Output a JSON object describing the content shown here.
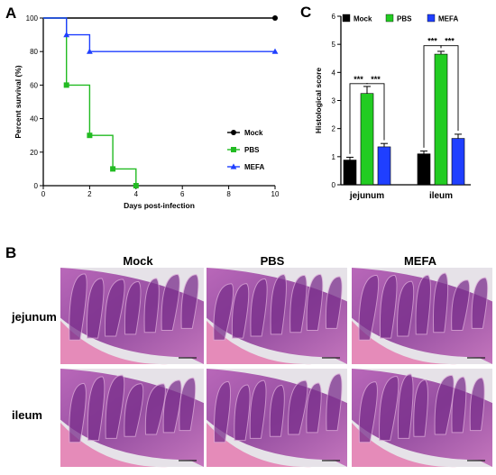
{
  "panels": {
    "a": "A",
    "b": "B",
    "c": "C"
  },
  "chart_data": [
    {
      "type": "line",
      "step": true,
      "xlabel": "Days post-infection",
      "ylabel": "Percent survival (%)",
      "xlim": [
        0,
        10
      ],
      "ylim": [
        0,
        100
      ],
      "xticks": [
        0,
        2,
        4,
        6,
        8,
        10
      ],
      "yticks": [
        0,
        20,
        40,
        60,
        80,
        100
      ],
      "grid": false,
      "legend": "right",
      "series": [
        {
          "name": "Mock",
          "color": "#000000",
          "marker": "circle",
          "x": [
            0,
            10
          ],
          "y": [
            100,
            100
          ],
          "marker_x": [
            10
          ],
          "marker_y": [
            100
          ]
        },
        {
          "name": "PBS",
          "color": "#22bb22",
          "marker": "square",
          "x": [
            0,
            1,
            2,
            3,
            4
          ],
          "y": [
            100,
            60,
            30,
            10,
            0
          ],
          "marker_x": [
            1,
            2,
            3,
            4
          ],
          "marker_y": [
            60,
            30,
            10,
            0
          ]
        },
        {
          "name": "MEFA",
          "color": "#1f3fff",
          "marker": "triangle",
          "x": [
            0,
            1,
            2,
            10
          ],
          "y": [
            100,
            90,
            80,
            80
          ],
          "marker_x": [
            1,
            2,
            10
          ],
          "marker_y": [
            90,
            80,
            80
          ]
        }
      ]
    },
    {
      "type": "bar",
      "ylabel": "Histological score",
      "ylim": [
        0,
        6
      ],
      "yticks": [
        0,
        1,
        2,
        3,
        4,
        5,
        6
      ],
      "categories": [
        "jejunum",
        "ileum"
      ],
      "legend": "top",
      "series": [
        {
          "name": "Mock",
          "color": "#000000",
          "values": [
            0.88,
            1.1
          ],
          "errors": [
            0.1,
            0.1
          ]
        },
        {
          "name": "PBS",
          "color": "#22cc22",
          "values": [
            3.25,
            4.65
          ],
          "errors": [
            0.25,
            0.1
          ]
        },
        {
          "name": "MEFA",
          "color": "#1f3fff",
          "values": [
            1.35,
            1.65
          ],
          "errors": [
            0.12,
            0.15
          ]
        }
      ],
      "significance": {
        "label": "***",
        "pairs": [
          {
            "category": 0,
            "from": 0,
            "to": 1,
            "level": 3.6
          },
          {
            "category": 0,
            "from": 1,
            "to": 2,
            "level": 3.6
          },
          {
            "category": 1,
            "from": 0,
            "to": 1,
            "level": 4.95
          },
          {
            "category": 1,
            "from": 1,
            "to": 2,
            "level": 4.95
          }
        ]
      }
    }
  ],
  "histology": {
    "columns": [
      "Mock",
      "PBS",
      "MEFA"
    ],
    "rows": [
      "jejunum",
      "ileum"
    ]
  }
}
